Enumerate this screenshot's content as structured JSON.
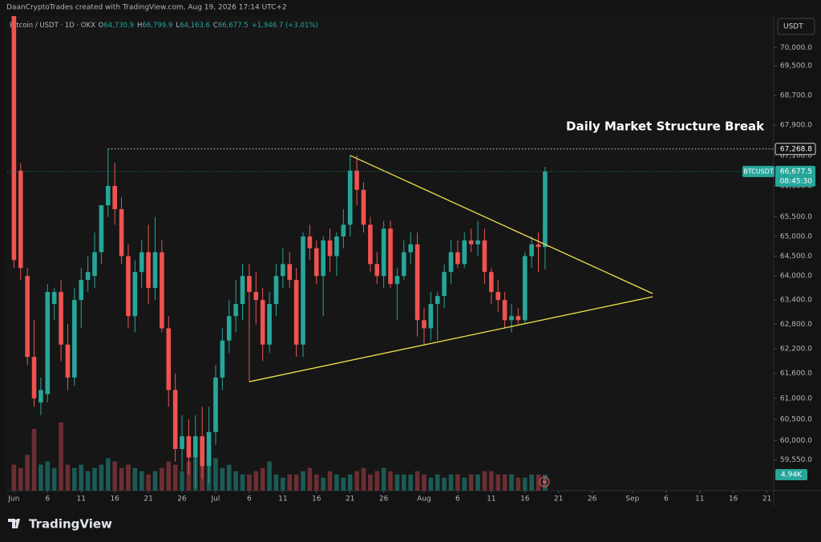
{
  "header": {
    "attribution": "DaanCryptoTrades created with TradingView.com, Aug 19, 2026 17:14 UTC+2"
  },
  "legend": {
    "symbol": "Bitcoin / USDT · 1D · OKX",
    "items": [
      {
        "key": "O",
        "value": "64,730.9"
      },
      {
        "key": "H",
        "value": "66,799.9"
      },
      {
        "key": "L",
        "value": "64,163.6"
      },
      {
        "key": "C",
        "value": "66,677.5"
      }
    ],
    "change": "+1,946.7 (+3.01%)"
  },
  "currency_button": "USDT",
  "footer": {
    "brand": "TradingView"
  },
  "chart_data": {
    "type": "candlestick",
    "log": true,
    "grid": false,
    "up_color": "#26a69a",
    "down_color": "#ef5350",
    "volume_up_color": "#1c5a55",
    "volume_down_color": "#6b2e33",
    "x": [
      "Jun 1",
      "Jun 2",
      "Jun 3",
      "Jun 4",
      "Jun 5",
      "Jun 6",
      "Jun 7",
      "Jun 8",
      "Jun 9",
      "Jun 10",
      "Jun 11",
      "Jun 12",
      "Jun 13",
      "Jun 14",
      "Jun 15",
      "Jun 16",
      "Jun 17",
      "Jun 18",
      "Jun 19",
      "Jun 20",
      "Jun 21",
      "Jun 22",
      "Jun 23",
      "Jun 24",
      "Jun 25",
      "Jun 26",
      "Jun 27",
      "Jun 28",
      "Jun 29",
      "Jun 30",
      "Jul 1",
      "Jul 2",
      "Jul 3",
      "Jul 4",
      "Jul 5",
      "Jul 6",
      "Jul 7",
      "Jul 8",
      "Jul 9",
      "Jul 10",
      "Jul 11",
      "Jul 12",
      "Jul 13",
      "Jul 14",
      "Jul 15",
      "Jul 16",
      "Jul 17",
      "Jul 18",
      "Jul 19",
      "Jul 20",
      "Jul 21",
      "Jul 22",
      "Jul 23",
      "Jul 24",
      "Jul 25",
      "Jul 26",
      "Jul 27",
      "Jul 28",
      "Jul 29",
      "Jul 30",
      "Jul 31",
      "Aug 1",
      "Aug 2",
      "Aug 3",
      "Aug 4",
      "Aug 5",
      "Aug 6",
      "Aug 7",
      "Aug 8",
      "Aug 9",
      "Aug 10",
      "Aug 11",
      "Aug 12",
      "Aug 13",
      "Aug 14",
      "Aug 15",
      "Aug 16",
      "Aug 17",
      "Aug 18",
      "Aug 19"
    ],
    "open": [
      70900,
      66700,
      64000,
      62000,
      60900,
      61100,
      63300,
      63600,
      62300,
      61500,
      63400,
      63900,
      64000,
      64600,
      65800,
      66300,
      65700,
      64500,
      63000,
      64100,
      64600,
      63700,
      64600,
      62700,
      61200,
      59800,
      60100,
      59600,
      60100,
      59400,
      60200,
      61500,
      62400,
      63000,
      63300,
      64000,
      63600,
      63400,
      62300,
      63300,
      64000,
      64300,
      63900,
      62300,
      65000,
      64700,
      64000,
      64900,
      64500,
      65000,
      65300,
      66700,
      66200,
      65300,
      64300,
      64000,
      65200,
      63800,
      64000,
      64600,
      64800,
      62900,
      62700,
      63300,
      63500,
      64100,
      64600,
      64300,
      64900,
      64800,
      64900,
      64100,
      63600,
      63400,
      62900,
      63000,
      62900,
      64500,
      64800,
      64730.9
    ],
    "high": [
      71300,
      66900,
      64200,
      62900,
      61500,
      63800,
      63700,
      63900,
      62800,
      63700,
      64200,
      64500,
      65100,
      65800,
      67268.8,
      66900,
      66000,
      64800,
      64400,
      64900,
      65300,
      65500,
      64900,
      63000,
      61600,
      60600,
      60500,
      60600,
      60800,
      60800,
      61800,
      62700,
      63400,
      63900,
      64300,
      64300,
      64100,
      63700,
      63600,
      64300,
      64700,
      64600,
      64200,
      65100,
      65300,
      64900,
      65000,
      65200,
      65100,
      65700,
      67100,
      67100,
      66400,
      65500,
      64600,
      65400,
      65400,
      64200,
      64900,
      65100,
      65100,
      63200,
      63600,
      63600,
      64300,
      64900,
      64900,
      65100,
      65200,
      65400,
      65200,
      64200,
      63900,
      63600,
      63300,
      63200,
      64600,
      65000,
      65100,
      66799.9
    ],
    "low": [
      64200,
      63900,
      61800,
      60800,
      60600,
      60900,
      62900,
      61900,
      61200,
      61300,
      62700,
      63600,
      63700,
      64300,
      65500,
      65300,
      64300,
      62700,
      62600,
      63700,
      63300,
      63400,
      62600,
      60800,
      59500,
      59300,
      59200,
      58900,
      59100,
      59000,
      59900,
      61200,
      62100,
      62600,
      62900,
      61400,
      62800,
      61900,
      62100,
      63000,
      63700,
      63700,
      62000,
      62000,
      64400,
      63800,
      63000,
      64100,
      64000,
      64700,
      65000,
      65800,
      65100,
      64100,
      63800,
      63700,
      63700,
      62900,
      63900,
      64300,
      62500,
      62300,
      62400,
      62400,
      63200,
      63800,
      64200,
      64200,
      64600,
      64500,
      63800,
      63300,
      63100,
      62700,
      62600,
      62800,
      62800,
      64200,
      64100,
      64163.6
    ],
    "close": [
      64400,
      64200,
      62000,
      61000,
      61200,
      63600,
      63600,
      62300,
      61500,
      63400,
      63900,
      64100,
      64600,
      65800,
      66300,
      65700,
      64500,
      63000,
      64100,
      64600,
      63700,
      64600,
      62700,
      61200,
      59800,
      60100,
      59600,
      60100,
      59400,
      60200,
      61500,
      62400,
      63000,
      63300,
      64000,
      63600,
      63400,
      62300,
      63300,
      64000,
      64300,
      63900,
      62300,
      65000,
      64700,
      64000,
      64900,
      64500,
      65000,
      65300,
      66700,
      66200,
      65300,
      64300,
      64000,
      65200,
      63800,
      64000,
      64600,
      64800,
      62900,
      62700,
      63300,
      63500,
      64100,
      64600,
      64300,
      64900,
      64800,
      64900,
      64100,
      63600,
      63400,
      62900,
      63000,
      62900,
      64500,
      64800,
      64730.8,
      66677.5
    ],
    "volume": [
      8,
      7,
      11,
      19,
      8,
      9,
      7,
      21,
      8,
      7,
      8,
      6,
      7,
      8,
      10,
      9,
      7,
      8,
      7,
      6,
      5,
      6,
      7,
      9,
      8,
      6,
      9,
      10,
      8,
      9,
      10,
      7,
      8,
      6,
      5,
      5,
      6,
      7,
      9,
      5,
      4,
      5,
      5,
      6,
      7,
      5,
      4,
      6,
      5,
      4,
      5,
      6,
      7,
      5,
      6,
      7,
      6,
      5,
      5,
      5,
      6,
      5,
      4,
      5,
      4,
      5,
      5,
      4,
      5,
      5,
      6,
      6,
      5,
      5,
      5,
      4,
      4,
      5,
      5,
      4.94
    ],
    "xlim": [
      "May 31",
      "Sep 22"
    ],
    "xticks": [
      {
        "value": "Jun 1",
        "label": "Jun"
      },
      {
        "value": "Jun 6",
        "label": "6"
      },
      {
        "value": "Jun 11",
        "label": "11"
      },
      {
        "value": "Jun 16",
        "label": "16"
      },
      {
        "value": "Jun 21",
        "label": "21"
      },
      {
        "value": "Jun 26",
        "label": "26"
      },
      {
        "value": "Jul 1",
        "label": "Jul"
      },
      {
        "value": "Jul 6",
        "label": "6"
      },
      {
        "value": "Jul 11",
        "label": "11"
      },
      {
        "value": "Jul 16",
        "label": "16"
      },
      {
        "value": "Jul 21",
        "label": "21"
      },
      {
        "value": "Jul 26",
        "label": "26"
      },
      {
        "value": "Aug 1",
        "label": "Aug"
      },
      {
        "value": "Aug 6",
        "label": "6"
      },
      {
        "value": "Aug 11",
        "label": "11"
      },
      {
        "value": "Aug 16",
        "label": "16"
      },
      {
        "value": "Aug 21",
        "label": "21"
      },
      {
        "value": "Aug 26",
        "label": "26"
      },
      {
        "value": "Sep 1",
        "label": "Sep"
      },
      {
        "value": "Sep 6",
        "label": "6"
      },
      {
        "value": "Sep 11",
        "label": "11"
      },
      {
        "value": "Sep 16",
        "label": "16"
      },
      {
        "value": "Sep 21",
        "label": "21"
      }
    ],
    "ylim": [
      58830,
      70870
    ],
    "yticks": [
      {
        "value": 70000,
        "label": "70,000.0"
      },
      {
        "value": 69500,
        "label": "69,500.0"
      },
      {
        "value": 68700,
        "label": "68,700.0"
      },
      {
        "value": 67900,
        "label": "67,900.0"
      },
      {
        "value": 67100,
        "label": "67,100.0"
      },
      {
        "value": 66300,
        "label": "66,300.0"
      },
      {
        "value": 65500,
        "label": "65,500.0"
      },
      {
        "value": 65000,
        "label": "65,000.0"
      },
      {
        "value": 64500,
        "label": "64,500.0"
      },
      {
        "value": 64000,
        "label": "64,000.0"
      },
      {
        "value": 63400,
        "label": "63,400.0"
      },
      {
        "value": 62800,
        "label": "62,800.0"
      },
      {
        "value": 62200,
        "label": "62,200.0"
      },
      {
        "value": 61600,
        "label": "61,600.0"
      },
      {
        "value": 61000,
        "label": "61,000.0"
      },
      {
        "value": 60500,
        "label": "60,500.0"
      },
      {
        "value": 60000,
        "label": "60,000.0"
      },
      {
        "value": 59550,
        "label": "59,550.0"
      }
    ],
    "y3lim": [
      0,
      146
    ],
    "annotation": "Daily Market Structure Break",
    "level": {
      "x": "Jun 15",
      "value": 67268.8,
      "label": "67,268.8"
    },
    "last_price": {
      "symbol": "BTCUSDT",
      "value": 66677.5,
      "label": "66,677.5",
      "countdown": "08:45:30"
    },
    "volume_tag": {
      "value": 4.94,
      "label": "4.94K"
    },
    "trendline_color": "#f0e04a",
    "trendlines": [
      {
        "x": [
          "Jul 21",
          "Sep 4"
        ],
        "y": [
          67100,
          63560
        ]
      },
      {
        "x": [
          "Jul 6",
          "Sep 4"
        ],
        "y": [
          61400,
          63480
        ]
      }
    ]
  }
}
